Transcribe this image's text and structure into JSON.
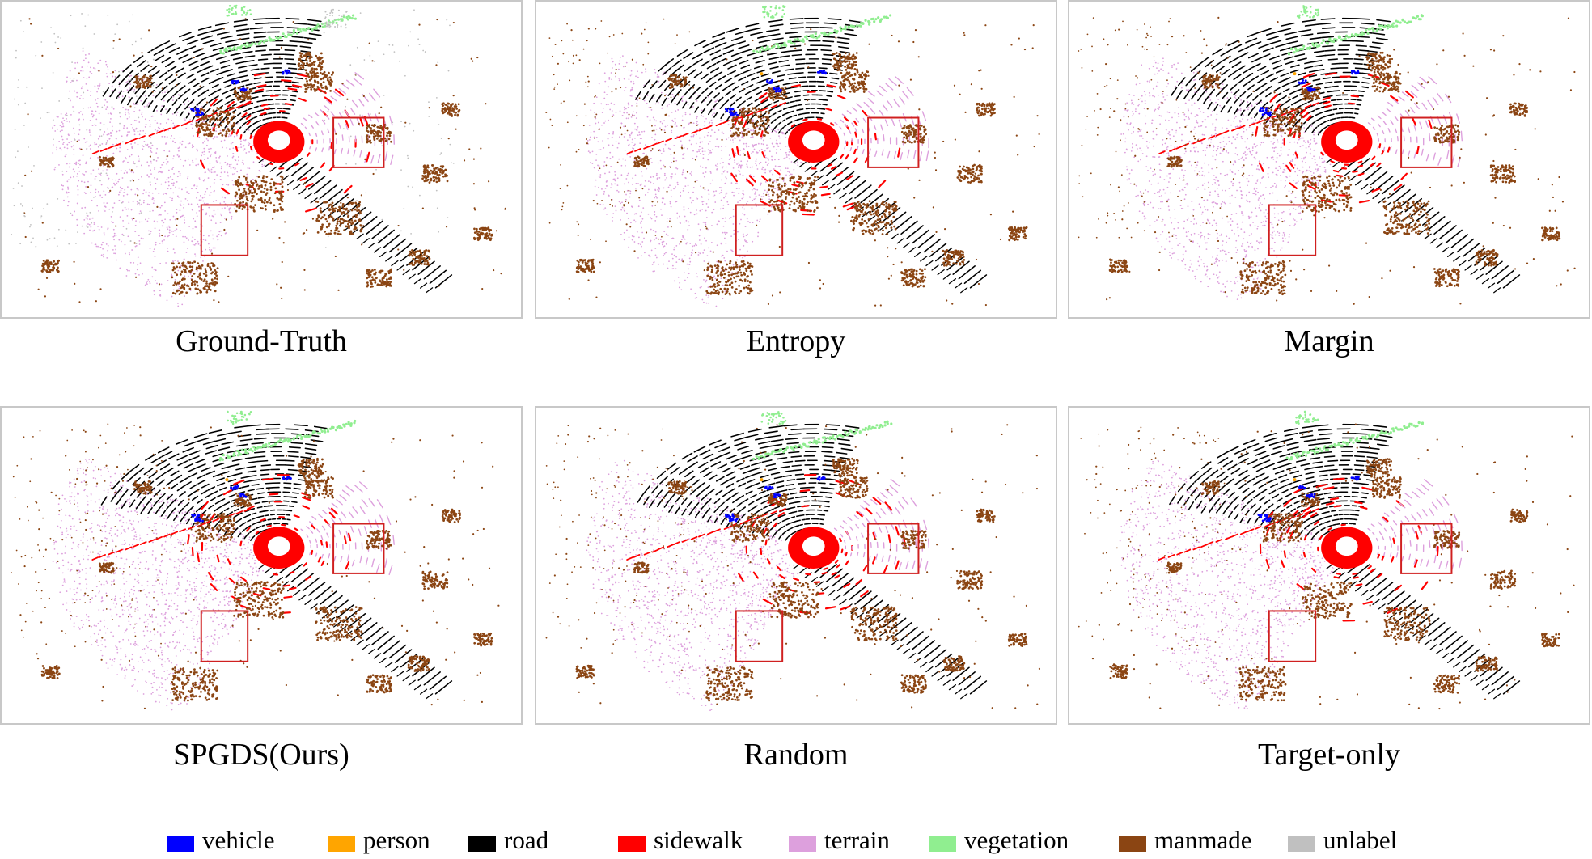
{
  "figure": {
    "panels": [
      {
        "caption": "Ground-Truth",
        "variant": "ground-truth"
      },
      {
        "caption": "Entropy",
        "variant": "entropy"
      },
      {
        "caption": "Margin",
        "variant": "margin"
      },
      {
        "caption": "SPGDS(Ours)",
        "variant": "ours"
      },
      {
        "caption": "Random",
        "variant": "random"
      },
      {
        "caption": "Target-only",
        "variant": "target-only"
      }
    ],
    "legend": [
      {
        "label": "vehicle",
        "color": "#0000ff"
      },
      {
        "label": "person",
        "color": "#ffa500"
      },
      {
        "label": "road",
        "color": "#000000"
      },
      {
        "label": "sidewalk",
        "color": "#ff0000"
      },
      {
        "label": "terrain",
        "color": "#dda0dd"
      },
      {
        "label": "vegetation",
        "color": "#90ee90"
      },
      {
        "label": "manmade",
        "color": "#8b4513"
      },
      {
        "label": "unlabel",
        "color": "#c0c0c0"
      }
    ],
    "highlight_color": "#d02020"
  }
}
